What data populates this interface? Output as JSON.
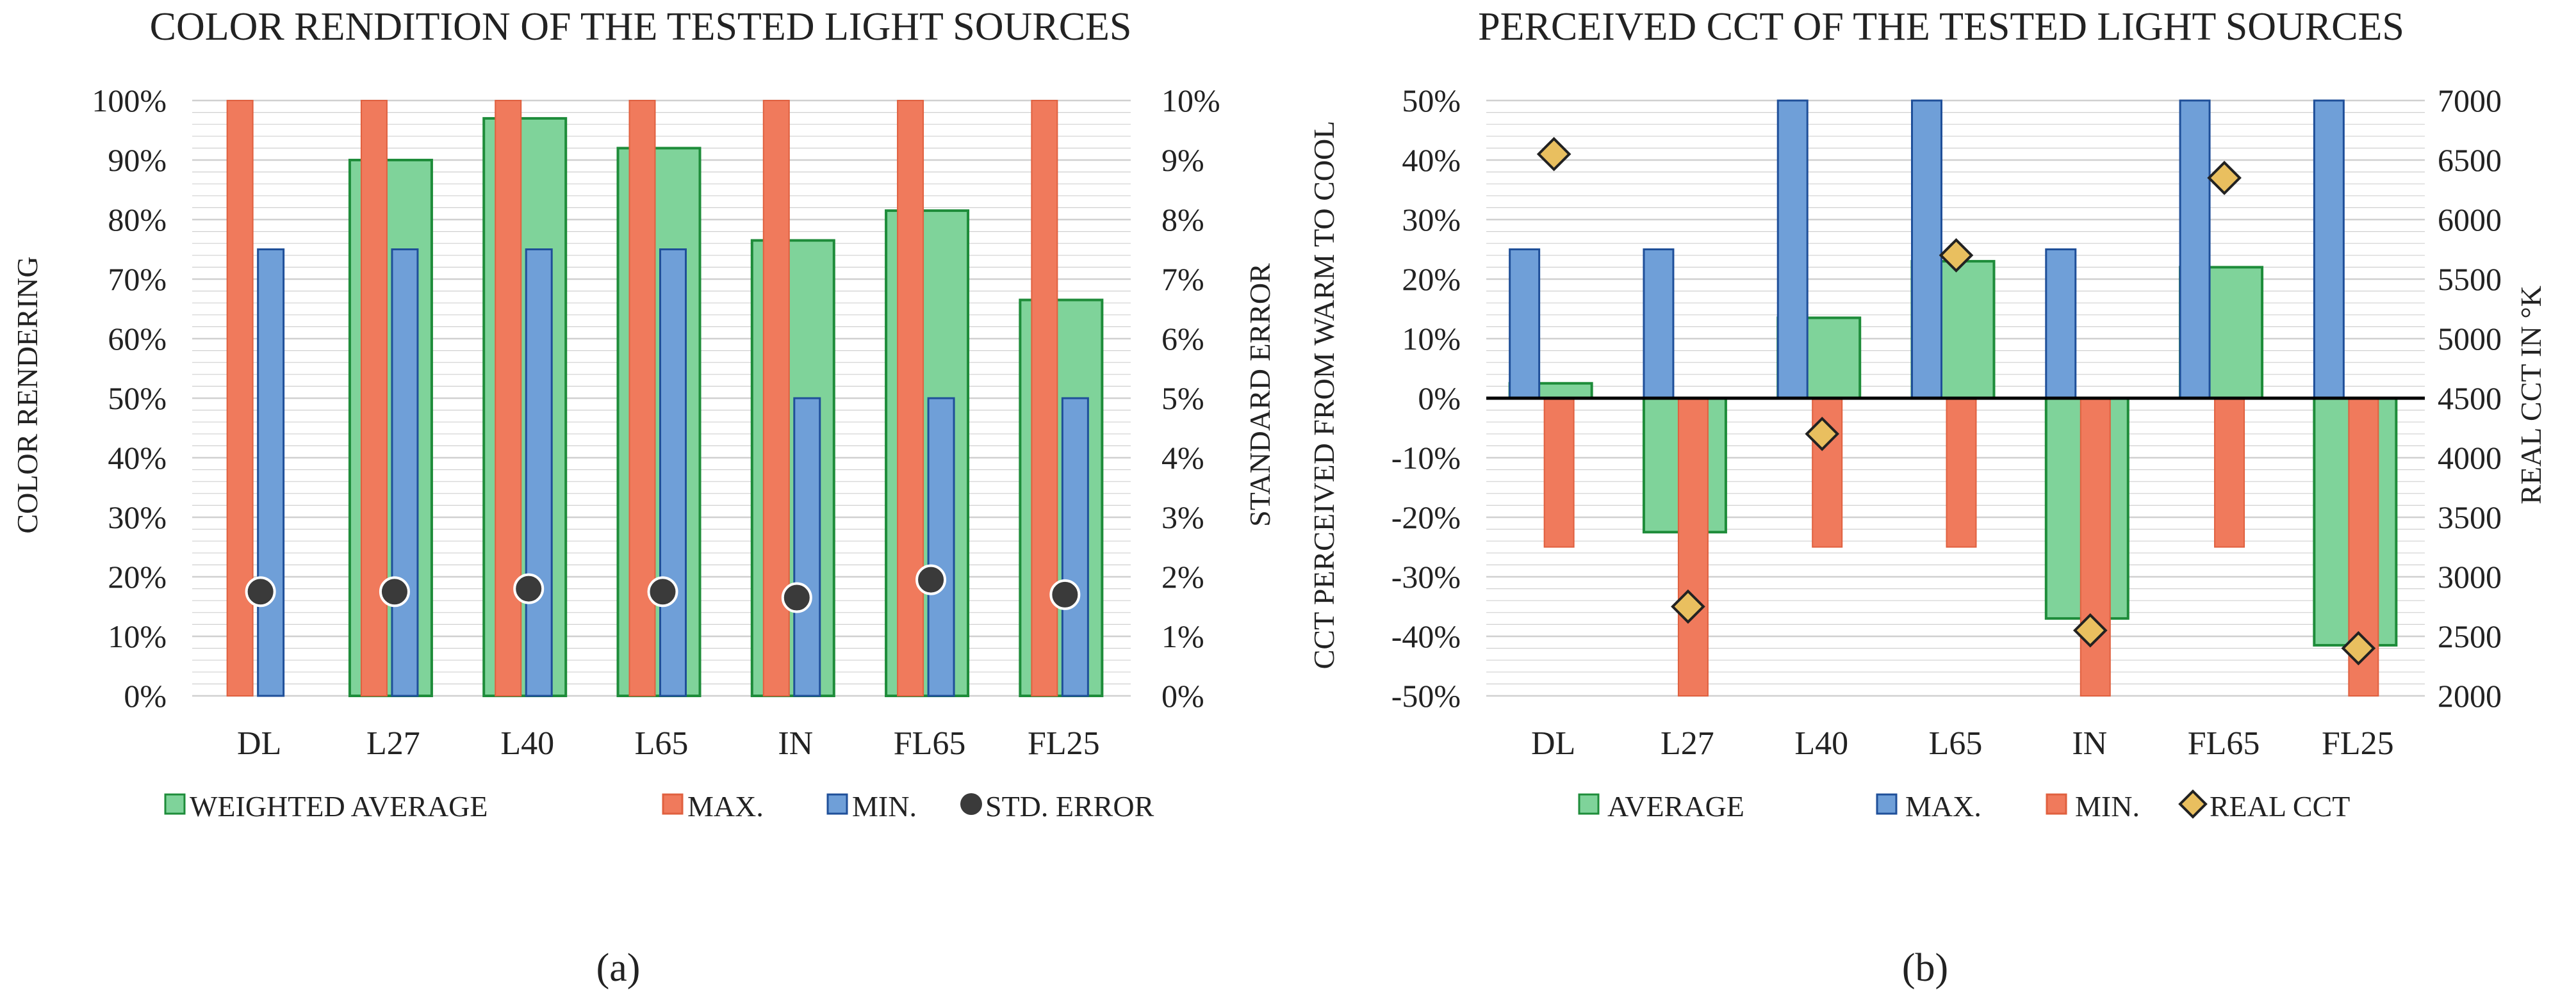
{
  "colors": {
    "green_fill": "#7fd39a",
    "green_stroke": "#1e8c3a",
    "orange_fill": "#f07a5c",
    "orange_stroke": "#e0603f",
    "blue_fill": "#6f9fd8",
    "blue_stroke": "#1f4f99",
    "dot_fill": "#3a3a3a",
    "diamond_fill": "#e9bf5f",
    "grid": "#d0d0d0",
    "zero_line": "#000000"
  },
  "chart_data": [
    {
      "type": "bar",
      "title": "COLOR RENDITION OF THE TESTED LIGHT SOURCES",
      "panel_label": "(a)",
      "categories": [
        "DL",
        "L27",
        "L40",
        "L65",
        "IN",
        "FL65",
        "FL25"
      ],
      "ylabel": "COLOR RENDERING",
      "y2label": "STANDARD ERROR",
      "ylim": [
        0,
        100
      ],
      "y2lim": [
        0,
        10
      ],
      "yticks": [
        "0%",
        "10%",
        "20%",
        "30%",
        "40%",
        "50%",
        "60%",
        "70%",
        "80%",
        "90%",
        "100%"
      ],
      "y2ticks": [
        "0%",
        "1%",
        "2%",
        "3%",
        "4%",
        "5%",
        "6%",
        "7%",
        "8%",
        "9%",
        "10%"
      ],
      "grid": true,
      "legend_position": "bottom",
      "series": [
        {
          "name": "WEIGHTED AVERAGE",
          "kind": "bar",
          "axis": "left",
          "values": [
            0,
            90,
            97,
            92,
            76.5,
            81.5,
            66.5
          ]
        },
        {
          "name": "MAX.",
          "kind": "bar",
          "axis": "left",
          "values": [
            100,
            100,
            100,
            100,
            100,
            100,
            100
          ]
        },
        {
          "name": "MIN.",
          "kind": "bar",
          "axis": "left",
          "values": [
            75,
            75,
            75,
            75,
            50,
            50,
            50
          ]
        },
        {
          "name": "STD. ERROR",
          "kind": "point",
          "axis": "right",
          "values": [
            1.75,
            1.75,
            1.8,
            1.75,
            1.65,
            1.95,
            1.7
          ]
        }
      ]
    },
    {
      "type": "bar",
      "title": "PERCEIVED  CCT OF THE TESTED LIGHT SOURCES",
      "panel_label": "(b)",
      "categories": [
        "DL",
        "L27",
        "L40",
        "L65",
        "IN",
        "FL65",
        "FL25"
      ],
      "ylabel": "CCT PERCEIVED FROM WARM TO COOL",
      "y2label": "REAL CCT IN °K",
      "ylim": [
        -50,
        50
      ],
      "y2lim": [
        2000,
        7000
      ],
      "yticks": [
        "-50%",
        "-40%",
        "-30%",
        "-20%",
        "-10%",
        "0%",
        "10%",
        "20%",
        "30%",
        "40%",
        "50%"
      ],
      "y2ticks": [
        "2000",
        "2500",
        "3000",
        "3500",
        "4000",
        "4500",
        "5000",
        "5500",
        "6000",
        "6500",
        "7000"
      ],
      "grid": true,
      "legend_position": "bottom",
      "series": [
        {
          "name": "AVERAGE",
          "kind": "bar",
          "axis": "left",
          "values": [
            2.5,
            -22.5,
            13.5,
            23,
            -37,
            22,
            -41.5
          ]
        },
        {
          "name": "MAX.",
          "kind": "bar",
          "axis": "left",
          "values": [
            25,
            25,
            50,
            50,
            25,
            50,
            50
          ]
        },
        {
          "name": "MIN.",
          "kind": "bar",
          "axis": "left",
          "values": [
            -25,
            -50,
            -25,
            -25,
            -50,
            -25,
            -50
          ]
        },
        {
          "name": "REAL CCT",
          "kind": "point",
          "axis": "right",
          "values": [
            6550,
            2750,
            4200,
            5700,
            2550,
            6350,
            2400
          ]
        }
      ]
    }
  ]
}
